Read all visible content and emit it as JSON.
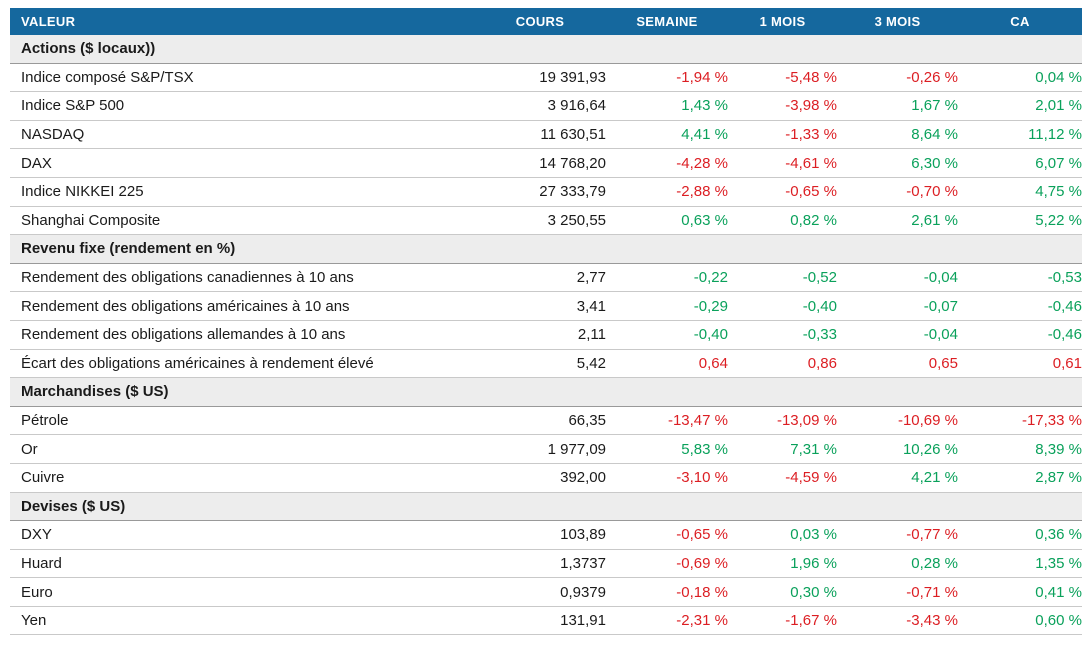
{
  "colors": {
    "header_bg": "#15689E",
    "header_text": "#FFFFFF",
    "positive_green": "#0AA15B",
    "negative_red": "#DC1E23",
    "section_bg": "#EDEDED"
  },
  "table": {
    "columns": [
      "VALEUR",
      "COURS",
      "SEMAINE",
      "1 MOIS",
      "3 MOIS",
      "CA"
    ],
    "sections": [
      {
        "title": "Actions ($ locaux))",
        "rows": [
          {
            "label": "Indice composé S&P/TSX",
            "cours": "19 391,93",
            "cells": [
              {
                "text": "-1,94 %",
                "color": "red"
              },
              {
                "text": "-5,48 %",
                "color": "red"
              },
              {
                "text": "-0,26 %",
                "color": "red"
              },
              {
                "text": "0,04 %",
                "color": "green"
              }
            ]
          },
          {
            "label": "Indice S&P 500",
            "cours": "3 916,64",
            "cells": [
              {
                "text": "1,43 %",
                "color": "green"
              },
              {
                "text": "-3,98 %",
                "color": "red"
              },
              {
                "text": "1,67 %",
                "color": "green"
              },
              {
                "text": "2,01 %",
                "color": "green"
              }
            ]
          },
          {
            "label": "NASDAQ",
            "cours": "11 630,51",
            "cells": [
              {
                "text": "4,41 %",
                "color": "green"
              },
              {
                "text": "-1,33 %",
                "color": "red"
              },
              {
                "text": "8,64 %",
                "color": "green"
              },
              {
                "text": "11,12 %",
                "color": "green"
              }
            ]
          },
          {
            "label": "DAX",
            "cours": "14 768,20",
            "cells": [
              {
                "text": "-4,28 %",
                "color": "red"
              },
              {
                "text": "-4,61 %",
                "color": "red"
              },
              {
                "text": "6,30 %",
                "color": "green"
              },
              {
                "text": "6,07 %",
                "color": "green"
              }
            ]
          },
          {
            "label": "Indice NIKKEI 225",
            "cours": "27 333,79",
            "cells": [
              {
                "text": "-2,88 %",
                "color": "red"
              },
              {
                "text": "-0,65 %",
                "color": "red"
              },
              {
                "text": "-0,70 %",
                "color": "red"
              },
              {
                "text": "4,75 %",
                "color": "green"
              }
            ]
          },
          {
            "label": "Shanghai Composite",
            "cours": "3 250,55",
            "cells": [
              {
                "text": "0,63 %",
                "color": "green"
              },
              {
                "text": "0,82 %",
                "color": "green"
              },
              {
                "text": "2,61 %",
                "color": "green"
              },
              {
                "text": "5,22 %",
                "color": "green"
              }
            ]
          }
        ]
      },
      {
        "title": "Revenu fixe (rendement en %)",
        "rows": [
          {
            "label": "Rendement des obligations canadiennes à 10 ans",
            "cours": "2,77",
            "cells": [
              {
                "text": "-0,22",
                "color": "green"
              },
              {
                "text": "-0,52",
                "color": "green"
              },
              {
                "text": "-0,04",
                "color": "green"
              },
              {
                "text": "-0,53",
                "color": "green"
              }
            ]
          },
          {
            "label": "Rendement des obligations américaines à 10 ans",
            "cours": "3,41",
            "cells": [
              {
                "text": "-0,29",
                "color": "green"
              },
              {
                "text": "-0,40",
                "color": "green"
              },
              {
                "text": "-0,07",
                "color": "green"
              },
              {
                "text": "-0,46",
                "color": "green"
              }
            ]
          },
          {
            "label": "Rendement des obligations allemandes à 10 ans",
            "cours": "2,11",
            "cells": [
              {
                "text": "-0,40",
                "color": "green"
              },
              {
                "text": "-0,33",
                "color": "green"
              },
              {
                "text": "-0,04",
                "color": "green"
              },
              {
                "text": "-0,46",
                "color": "green"
              }
            ]
          },
          {
            "label": "Écart des obligations américaines à rendement élevé",
            "cours": "5,42",
            "cells": [
              {
                "text": "0,64",
                "color": "red"
              },
              {
                "text": "0,86",
                "color": "red"
              },
              {
                "text": "0,65",
                "color": "red"
              },
              {
                "text": "0,61",
                "color": "red"
              }
            ]
          }
        ]
      },
      {
        "title": "Marchandises ($ US)",
        "rows": [
          {
            "label": "Pétrole",
            "cours": "66,35",
            "cells": [
              {
                "text": "-13,47 %",
                "color": "red"
              },
              {
                "text": "-13,09 %",
                "color": "red"
              },
              {
                "text": "-10,69 %",
                "color": "red"
              },
              {
                "text": "-17,33 %",
                "color": "red"
              }
            ]
          },
          {
            "label": "Or",
            "cours": "1 977,09",
            "cells": [
              {
                "text": "5,83 %",
                "color": "green"
              },
              {
                "text": "7,31 %",
                "color": "green"
              },
              {
                "text": "10,26 %",
                "color": "green"
              },
              {
                "text": "8,39 %",
                "color": "green"
              }
            ]
          },
          {
            "label": "Cuivre",
            "cours": "392,00",
            "cells": [
              {
                "text": "-3,10 %",
                "color": "red"
              },
              {
                "text": "-4,59 %",
                "color": "red"
              },
              {
                "text": "4,21 %",
                "color": "green"
              },
              {
                "text": "2,87 %",
                "color": "green"
              }
            ]
          }
        ]
      },
      {
        "title": "Devises ($ US)",
        "rows": [
          {
            "label": "DXY",
            "cours": "103,89",
            "cells": [
              {
                "text": "-0,65 %",
                "color": "red"
              },
              {
                "text": "0,03 %",
                "color": "green"
              },
              {
                "text": "-0,77 %",
                "color": "red"
              },
              {
                "text": "0,36 %",
                "color": "green"
              }
            ]
          },
          {
            "label": "Huard",
            "cours": "1,3737",
            "cells": [
              {
                "text": "-0,69 %",
                "color": "red"
              },
              {
                "text": "1,96 %",
                "color": "green"
              },
              {
                "text": "0,28 %",
                "color": "green"
              },
              {
                "text": "1,35 %",
                "color": "green"
              }
            ]
          },
          {
            "label": "Euro",
            "cours": "0,9379",
            "cells": [
              {
                "text": "-0,18 %",
                "color": "red"
              },
              {
                "text": "0,30 %",
                "color": "green"
              },
              {
                "text": "-0,71 %",
                "color": "red"
              },
              {
                "text": "0,41 %",
                "color": "green"
              }
            ]
          },
          {
            "label": "Yen",
            "cours": "131,91",
            "cells": [
              {
                "text": "-2,31 %",
                "color": "red"
              },
              {
                "text": "-1,67 %",
                "color": "red"
              },
              {
                "text": "-3,43 %",
                "color": "red"
              },
              {
                "text": "0,60 %",
                "color": "green"
              }
            ]
          }
        ]
      }
    ]
  }
}
